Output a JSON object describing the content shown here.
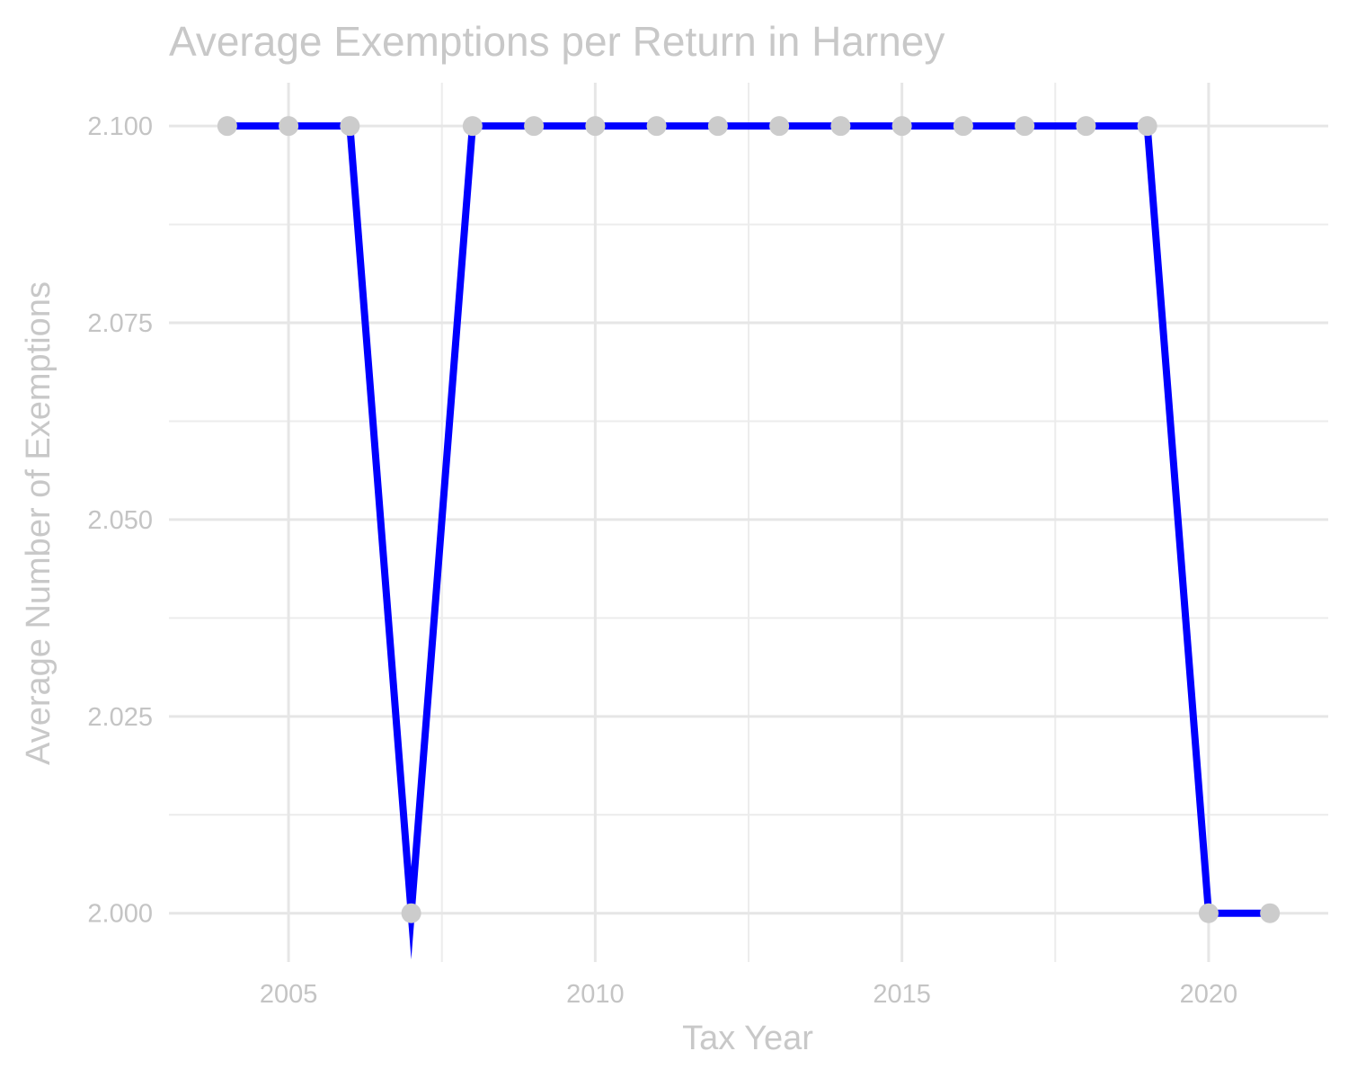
{
  "chart_data": {
    "type": "line",
    "title": "Average Exemptions per Return in Harney",
    "xlabel": "Tax Year",
    "ylabel": "Average Number of Exemptions",
    "x": [
      2004,
      2005,
      2006,
      2007,
      2008,
      2009,
      2010,
      2011,
      2012,
      2013,
      2014,
      2015,
      2016,
      2017,
      2018,
      2019,
      2020,
      2021
    ],
    "series": [
      {
        "name": "Average Exemptions",
        "values": [
          2.1,
          2.1,
          2.1,
          2.0,
          2.1,
          2.1,
          2.1,
          2.1,
          2.1,
          2.1,
          2.1,
          2.1,
          2.1,
          2.1,
          2.1,
          2.1,
          2.0,
          2.0
        ]
      }
    ],
    "xlim": [
      2003.05,
      2021.95
    ],
    "ylim": [
      1.9938,
      2.1055
    ],
    "x_ticks": [
      2005,
      2010,
      2015,
      2020
    ],
    "x_tick_labels": [
      "2005",
      "2010",
      "2015",
      "2020"
    ],
    "y_ticks": [
      2.0,
      2.025,
      2.05,
      2.075,
      2.1
    ],
    "y_tick_labels": [
      "2.000",
      "2.025",
      "2.050",
      "2.075",
      "2.100"
    ],
    "grid": true,
    "line_color": "#0000ff",
    "point_color": "#cccccc"
  }
}
